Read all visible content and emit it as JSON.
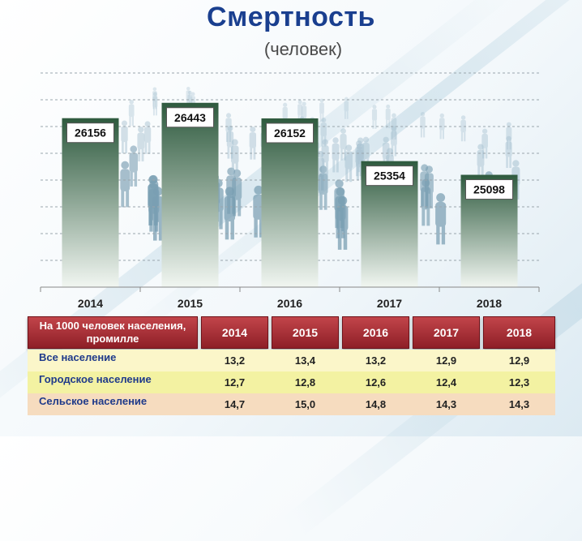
{
  "title": "Смертность",
  "subtitle": "(человек)",
  "colors": {
    "bar_top": "#2e5a3e",
    "bar_bottom": "#f1f6f1",
    "title": "#1a3f8f",
    "table_header": "#9e2a31"
  },
  "chart_data": {
    "type": "bar",
    "categories": [
      "2014",
      "2015",
      "2016",
      "2017",
      "2018"
    ],
    "values": [
      26156,
      26443,
      26152,
      25354,
      25098
    ],
    "value_labels": [
      "26156",
      "26443",
      "26152",
      "25354",
      "25098"
    ],
    "title": "Смертность",
    "subtitle": "(человек)",
    "ylim": [
      23000,
      27000
    ],
    "grid": true,
    "legend": "none"
  },
  "table": {
    "header_label": "На 1000 человек населения, промилле",
    "years": [
      "2014",
      "2015",
      "2016",
      "2017",
      "2018"
    ],
    "rows": [
      {
        "label": "Все население",
        "values": [
          "13,2",
          "13,4",
          "13,2",
          "12,9",
          "12,9"
        ],
        "bg": "#fbf6c9"
      },
      {
        "label": "Городское население",
        "values": [
          "12,7",
          "12,8",
          "12,6",
          "12,4",
          "12,3"
        ],
        "bg": "#f3f2a2"
      },
      {
        "label": "Сельское население",
        "values": [
          "14,7",
          "15,0",
          "14,8",
          "14,3",
          "14,3"
        ],
        "bg": "#f6dcbf"
      }
    ]
  }
}
